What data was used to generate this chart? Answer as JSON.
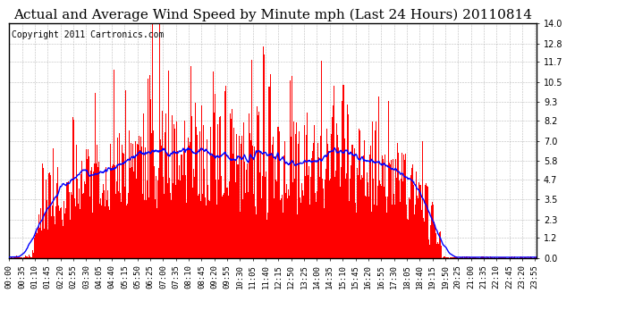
{
  "title": "Actual and Average Wind Speed by Minute mph (Last 24 Hours) 20110814",
  "copyright_text": "Copyright 2011 Cartronics.com",
  "yticks": [
    0.0,
    1.2,
    2.3,
    3.5,
    4.7,
    5.8,
    7.0,
    8.2,
    9.3,
    10.5,
    11.7,
    12.8,
    14.0
  ],
  "ymax": 14.0,
  "ymin": 0.0,
  "bar_color": "#ff0000",
  "line_color": "#0000ff",
  "background_color": "#ffffff",
  "plot_bg_color": "#ffffff",
  "grid_color": "#aaaaaa",
  "title_fontsize": 11,
  "copyright_fontsize": 7,
  "tick_fontsize": 6.5,
  "n_minutes": 1440,
  "x_tick_interval": 35,
  "border_color": "#000000"
}
